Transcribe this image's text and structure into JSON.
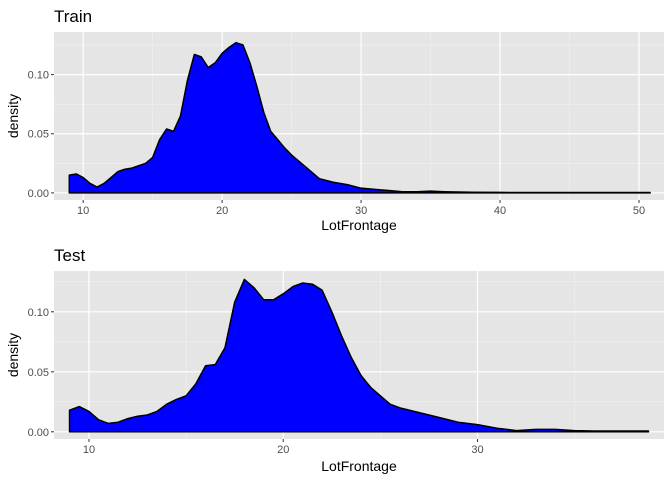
{
  "chart_data": [
    {
      "type": "area",
      "title": "Train",
      "xlabel": "LotFrontage",
      "ylabel": "density",
      "xlim": [
        7.9,
        51.8
      ],
      "ylim": [
        -0.006,
        0.136
      ],
      "x_ticks": [
        10,
        20,
        30,
        40,
        50
      ],
      "y_ticks": [
        0.0,
        0.05,
        0.1
      ],
      "y_tick_labels": [
        "0.00",
        "0.05",
        "0.10"
      ],
      "grid": true,
      "fill_color": "#0000ff",
      "line_color": "#000000",
      "panel_background": "#e5e5e5",
      "x": [
        9.0,
        9.5,
        10.0,
        10.5,
        11.0,
        11.5,
        12.0,
        12.5,
        13.0,
        13.5,
        14.0,
        14.5,
        15.0,
        15.5,
        16.0,
        16.5,
        17.0,
        17.5,
        18.0,
        18.5,
        19.0,
        19.5,
        20.0,
        20.5,
        21.0,
        21.5,
        22.0,
        22.5,
        23.0,
        23.5,
        24.0,
        24.5,
        25.0,
        26.0,
        27.0,
        28.0,
        29.0,
        30.0,
        31.0,
        32.0,
        33.0,
        34.0,
        35.0,
        36.0,
        38.0,
        40.0,
        45.0,
        50.0,
        50.8
      ],
      "y": [
        0.015,
        0.016,
        0.013,
        0.008,
        0.005,
        0.008,
        0.013,
        0.018,
        0.02,
        0.021,
        0.023,
        0.025,
        0.03,
        0.045,
        0.054,
        0.052,
        0.065,
        0.095,
        0.117,
        0.115,
        0.106,
        0.11,
        0.118,
        0.123,
        0.127,
        0.125,
        0.11,
        0.09,
        0.068,
        0.052,
        0.045,
        0.038,
        0.032,
        0.022,
        0.012,
        0.009,
        0.007,
        0.004,
        0.003,
        0.002,
        0.001,
        0.001,
        0.0015,
        0.001,
        0.0005,
        0.0004,
        0.0003,
        0.0003,
        0.0003
      ]
    },
    {
      "type": "area",
      "title": "Test",
      "xlabel": "LotFrontage",
      "ylabel": "density",
      "xlim": [
        8.2,
        39.6
      ],
      "ylim": [
        -0.006,
        0.134
      ],
      "x_ticks": [
        10,
        20,
        30
      ],
      "y_ticks": [
        0.0,
        0.05,
        0.1
      ],
      "y_tick_labels": [
        "0.00",
        "0.05",
        "0.10"
      ],
      "grid": true,
      "fill_color": "#0000ff",
      "line_color": "#000000",
      "panel_background": "#e5e5e5",
      "x": [
        9.0,
        9.5,
        10.0,
        10.5,
        11.0,
        11.5,
        12.0,
        12.5,
        13.0,
        13.5,
        14.0,
        14.5,
        15.0,
        15.5,
        16.0,
        16.5,
        17.0,
        17.5,
        18.0,
        18.5,
        19.0,
        19.5,
        20.0,
        20.5,
        21.0,
        21.5,
        22.0,
        22.5,
        23.0,
        23.5,
        24.0,
        24.5,
        25.0,
        25.5,
        26.0,
        27.0,
        28.0,
        29.0,
        30.0,
        31.0,
        32.0,
        33.0,
        34.0,
        35.0,
        36.0,
        38.0,
        38.8
      ],
      "y": [
        0.018,
        0.021,
        0.017,
        0.01,
        0.007,
        0.008,
        0.011,
        0.013,
        0.014,
        0.017,
        0.023,
        0.027,
        0.03,
        0.04,
        0.055,
        0.056,
        0.07,
        0.108,
        0.127,
        0.12,
        0.11,
        0.11,
        0.115,
        0.121,
        0.124,
        0.123,
        0.118,
        0.1,
        0.08,
        0.062,
        0.047,
        0.037,
        0.03,
        0.023,
        0.02,
        0.016,
        0.012,
        0.008,
        0.006,
        0.003,
        0.001,
        0.002,
        0.002,
        0.001,
        0.0007,
        0.0007,
        0.0007
      ]
    }
  ]
}
